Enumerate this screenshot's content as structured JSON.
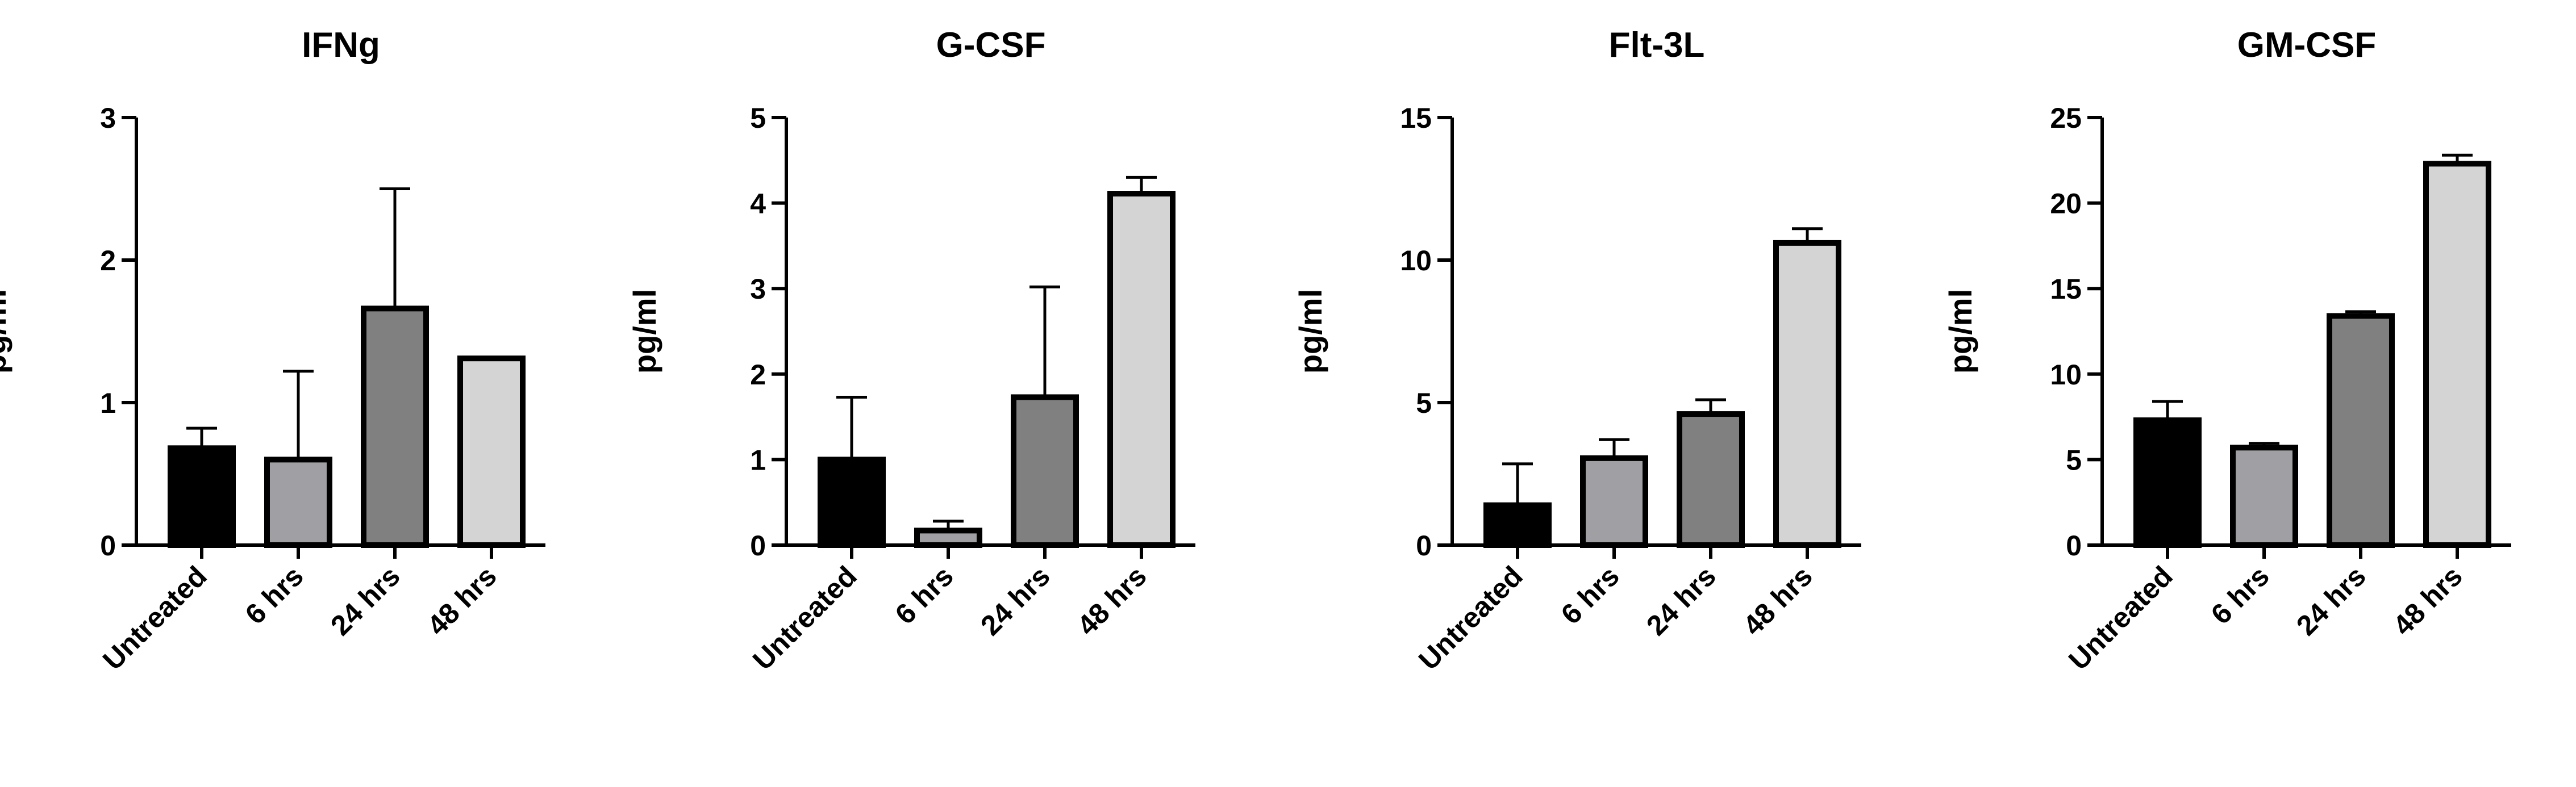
{
  "chart_data": [
    {
      "type": "bar",
      "title": "IFNg",
      "ylabel": "pg/ml",
      "categories": [
        "Untreated",
        "6 hrs",
        "24 hrs",
        "48 hrs"
      ],
      "values": [
        0.68,
        0.6,
        1.66,
        1.31
      ],
      "error_upper": [
        0.82,
        1.22,
        2.5,
        1.31
      ],
      "colors": [
        "#000000",
        "#a0a0a4",
        "#808080",
        "#d4d4d4"
      ],
      "ylim": [
        0,
        3
      ],
      "yticks": [
        "0",
        "1",
        "2",
        "3"
      ]
    },
    {
      "type": "bar",
      "title": "G-CSF",
      "ylabel": "pg/ml",
      "categories": [
        "Untreated",
        "6 hrs",
        "24 hrs",
        "48 hrs"
      ],
      "values": [
        1.0,
        0.17,
        1.73,
        4.11
      ],
      "error_upper": [
        1.73,
        0.28,
        3.02,
        4.3
      ],
      "colors": [
        "#000000",
        "#a0a0a4",
        "#808080",
        "#d4d4d4"
      ],
      "ylim": [
        0,
        5
      ],
      "yticks": [
        "0",
        "1",
        "2",
        "3",
        "4",
        "5"
      ]
    },
    {
      "type": "bar",
      "title": "Flt-3L",
      "ylabel": "pg/ml",
      "categories": [
        "Untreated",
        "6 hrs",
        "24 hrs",
        "48 hrs"
      ],
      "values": [
        1.4,
        3.05,
        4.6,
        10.6
      ],
      "error_upper": [
        2.85,
        3.7,
        5.1,
        11.1
      ],
      "colors": [
        "#000000",
        "#a0a0a4",
        "#808080",
        "#d4d4d4"
      ],
      "ylim": [
        0,
        15
      ],
      "yticks": [
        "0",
        "5",
        "10",
        "15"
      ]
    },
    {
      "type": "bar",
      "title": "GM-CSF",
      "ylabel": "pg/ml",
      "categories": [
        "Untreated",
        "6 hrs",
        "24 hrs",
        "48 hrs"
      ],
      "values": [
        7.3,
        5.7,
        13.4,
        22.3
      ],
      "error_upper": [
        8.4,
        5.95,
        13.65,
        22.8
      ],
      "colors": [
        "#000000",
        "#a0a0a4",
        "#808080",
        "#d4d4d4"
      ],
      "ylim": [
        0,
        25
      ],
      "yticks": [
        "0",
        "5",
        "10",
        "15",
        "20",
        "25"
      ]
    }
  ]
}
